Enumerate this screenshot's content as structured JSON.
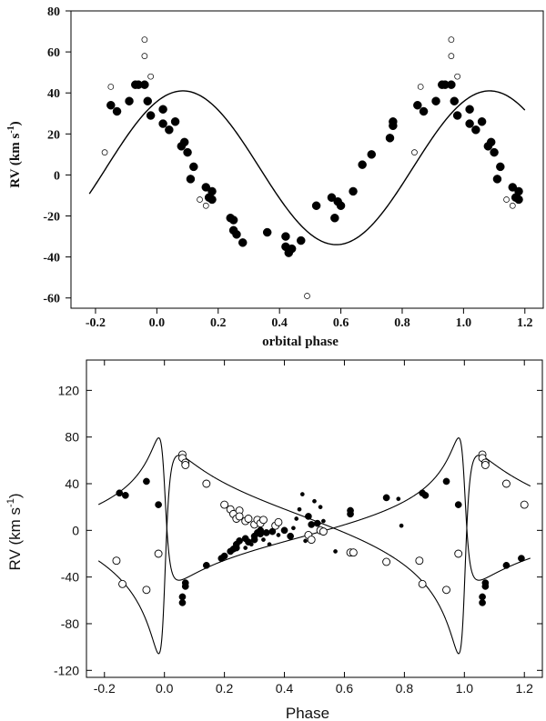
{
  "chart_data": [
    {
      "type": "scatter",
      "title": "",
      "xlabel": "orbital phase",
      "ylabel_main": "RV (km s",
      "ylabel_sup": "-1",
      "ylabel_close": ")",
      "xlim": [
        -0.28,
        1.26
      ],
      "ylim": [
        -65,
        80
      ],
      "xticks": [
        -0.2,
        0.0,
        0.2,
        0.4,
        0.6,
        0.8,
        1.0,
        1.2
      ],
      "xtick_labels": [
        "-0.2",
        "0.0",
        "0.2",
        "0.4",
        "0.6",
        "0.8",
        "1.0",
        "1.2"
      ],
      "yticks": [
        -60,
        -40,
        -20,
        0,
        20,
        40,
        60,
        80
      ],
      "ytick_labels": [
        "-60",
        "-40",
        "-20",
        "0",
        "20",
        "40",
        "60",
        "80"
      ],
      "curve": {
        "name": "fit",
        "gamma": 3.5,
        "K": 37.5,
        "phase0": 0.165
      },
      "series": [
        {
          "name": "filled",
          "marker": "filled-circle",
          "points": [
            [
              -0.15,
              34
            ],
            [
              -0.13,
              31
            ],
            [
              -0.09,
              36
            ],
            [
              -0.07,
              44
            ],
            [
              -0.06,
              44
            ],
            [
              -0.04,
              44
            ],
            [
              -0.03,
              36
            ],
            [
              -0.02,
              29
            ],
            [
              0.02,
              32
            ],
            [
              0.02,
              25
            ],
            [
              0.04,
              22
            ],
            [
              0.06,
              26
            ],
            [
              0.08,
              14
            ],
            [
              0.09,
              16
            ],
            [
              0.1,
              11
            ],
            [
              0.12,
              4
            ],
            [
              0.11,
              -2
            ],
            [
              0.16,
              -6
            ],
            [
              0.17,
              -11
            ],
            [
              0.18,
              -12
            ],
            [
              0.18,
              -8
            ],
            [
              0.24,
              -21
            ],
            [
              0.25,
              -22
            ],
            [
              0.25,
              -27
            ],
            [
              0.26,
              -29
            ],
            [
              0.28,
              -33
            ],
            [
              0.36,
              -28
            ],
            [
              0.42,
              -30
            ],
            [
              0.42,
              -35
            ],
            [
              0.43,
              -38
            ],
            [
              0.44,
              -36
            ],
            [
              0.47,
              -32
            ],
            [
              0.52,
              -15
            ],
            [
              0.57,
              -11
            ],
            [
              0.58,
              -21
            ],
            [
              0.59,
              -13
            ],
            [
              0.6,
              -15
            ],
            [
              0.64,
              -8
            ],
            [
              0.67,
              5
            ],
            [
              0.7,
              10
            ],
            [
              0.76,
              18
            ],
            [
              0.77,
              26
            ],
            [
              0.77,
              24
            ],
            [
              0.85,
              34
            ],
            [
              0.87,
              31
            ],
            [
              0.91,
              36
            ],
            [
              0.93,
              44
            ],
            [
              0.94,
              44
            ],
            [
              0.96,
              44
            ],
            [
              0.97,
              36
            ],
            [
              0.98,
              29
            ],
            [
              1.02,
              32
            ],
            [
              1.02,
              25
            ],
            [
              1.04,
              22
            ],
            [
              1.06,
              26
            ],
            [
              1.08,
              14
            ],
            [
              1.09,
              16
            ],
            [
              1.1,
              11
            ],
            [
              1.12,
              4
            ],
            [
              1.11,
              -2
            ],
            [
              1.16,
              -6
            ],
            [
              1.17,
              -11
            ],
            [
              1.18,
              -12
            ],
            [
              1.18,
              -8
            ]
          ]
        },
        {
          "name": "open",
          "marker": "open-circle",
          "points": [
            [
              -0.17,
              11
            ],
            [
              -0.15,
              43
            ],
            [
              -0.04,
              58
            ],
            [
              -0.04,
              66
            ],
            [
              -0.02,
              48
            ],
            [
              0.14,
              -12
            ],
            [
              0.16,
              -15
            ],
            [
              0.49,
              -59
            ],
            [
              0.84,
              11
            ],
            [
              0.86,
              43
            ],
            [
              0.96,
              58
            ],
            [
              0.96,
              66
            ],
            [
              0.98,
              48
            ],
            [
              1.14,
              -12
            ],
            [
              1.16,
              -15
            ]
          ]
        }
      ]
    },
    {
      "type": "scatter",
      "title": "",
      "xlabel": "Phase",
      "ylabel_main": "RV (km s",
      "ylabel_sup": "-1",
      "ylabel_close": ")",
      "xlim": [
        -0.26,
        1.26
      ],
      "ylim": [
        -126,
        146
      ],
      "xticks": [
        -0.2,
        0.0,
        0.2,
        0.4,
        0.6,
        0.8,
        1.0,
        1.2
      ],
      "xtick_labels": [
        "-0.2",
        "0.0",
        "0.2",
        "0.4",
        "0.6",
        "0.8",
        "1.0",
        "1.2"
      ],
      "yticks": [
        -120,
        -80,
        -40,
        0,
        40,
        80,
        120
      ],
      "ytick_labels": [
        "-120",
        "-80",
        "-40",
        "0",
        "40",
        "80",
        "120"
      ],
      "curves": [
        {
          "name": "component-1",
          "gamma": 2,
          "K": 61,
          "e": 0.78,
          "omega_deg": 70,
          "T0": 0.0
        },
        {
          "name": "component-2",
          "gamma": 2,
          "K": -85,
          "e": 0.78,
          "omega_deg": 70,
          "T0": 0.0
        }
      ],
      "series": [
        {
          "name": "filled-large",
          "marker": "filled-circle",
          "points": [
            [
              -0.15,
              32
            ],
            [
              -0.13,
              30
            ],
            [
              -0.06,
              42
            ],
            [
              -0.02,
              22
            ],
            [
              0.06,
              -57
            ],
            [
              0.06,
              -62
            ],
            [
              0.07,
              -48
            ],
            [
              0.07,
              -45
            ],
            [
              0.14,
              -30
            ],
            [
              0.19,
              -24
            ],
            [
              0.2,
              -22
            ],
            [
              0.22,
              -18
            ],
            [
              0.23,
              -16
            ],
            [
              0.24,
              -12
            ],
            [
              0.24,
              -15
            ],
            [
              0.25,
              -9
            ],
            [
              0.27,
              -7
            ],
            [
              0.28,
              -10
            ],
            [
              0.3,
              -5
            ],
            [
              0.3,
              -8
            ],
            [
              0.31,
              -2
            ],
            [
              0.32,
              0
            ],
            [
              0.32,
              -3
            ],
            [
              0.34,
              -2
            ],
            [
              0.36,
              -1
            ],
            [
              0.4,
              0
            ],
            [
              0.42,
              -5
            ],
            [
              0.48,
              12
            ],
            [
              0.49,
              5
            ],
            [
              0.51,
              6
            ],
            [
              0.62,
              14
            ],
            [
              0.62,
              17
            ],
            [
              0.74,
              28
            ],
            [
              0.86,
              32
            ],
            [
              0.87,
              30
            ],
            [
              0.94,
              42
            ],
            [
              0.98,
              22
            ],
            [
              1.06,
              -57
            ],
            [
              1.06,
              -62
            ],
            [
              1.07,
              -48
            ],
            [
              1.07,
              -45
            ],
            [
              1.14,
              -30
            ],
            [
              1.19,
              -24
            ]
          ]
        },
        {
          "name": "filled-small",
          "marker": "small-filled-circle",
          "points": [
            [
              0.27,
              -15
            ],
            [
              0.29,
              -12
            ],
            [
              0.33,
              -8
            ],
            [
              0.35,
              -12
            ],
            [
              0.38,
              -4
            ],
            [
              0.43,
              2
            ],
            [
              0.44,
              10
            ],
            [
              0.45,
              18
            ],
            [
              0.46,
              31
            ],
            [
              0.47,
              -9
            ],
            [
              0.5,
              25
            ],
            [
              0.52,
              20
            ],
            [
              0.53,
              8
            ],
            [
              0.57,
              -18
            ],
            [
              0.78,
              27
            ],
            [
              0.79,
              4
            ]
          ]
        },
        {
          "name": "open",
          "marker": "open-circle",
          "points": [
            [
              -0.16,
              -26
            ],
            [
              -0.14,
              -46
            ],
            [
              -0.06,
              -51
            ],
            [
              -0.02,
              -20
            ],
            [
              0.06,
              65
            ],
            [
              0.06,
              62
            ],
            [
              0.07,
              58
            ],
            [
              0.07,
              56
            ],
            [
              0.14,
              40
            ],
            [
              0.2,
              22
            ],
            [
              0.22,
              18
            ],
            [
              0.23,
              14
            ],
            [
              0.24,
              10
            ],
            [
              0.25,
              17
            ],
            [
              0.25,
              12
            ],
            [
              0.27,
              8
            ],
            [
              0.28,
              10
            ],
            [
              0.3,
              5
            ],
            [
              0.31,
              9
            ],
            [
              0.32,
              6
            ],
            [
              0.33,
              9
            ],
            [
              0.37,
              4
            ],
            [
              0.38,
              7
            ],
            [
              0.48,
              -4
            ],
            [
              0.49,
              -8
            ],
            [
              0.52,
              0
            ],
            [
              0.53,
              -1
            ],
            [
              0.62,
              -19
            ],
            [
              0.63,
              -19
            ],
            [
              0.74,
              -27
            ],
            [
              0.85,
              -26
            ],
            [
              0.86,
              -46
            ],
            [
              0.94,
              -51
            ],
            [
              0.98,
              -20
            ],
            [
              1.06,
              65
            ],
            [
              1.06,
              62
            ],
            [
              1.07,
              58
            ],
            [
              1.07,
              56
            ],
            [
              1.14,
              40
            ],
            [
              1.2,
              22
            ]
          ]
        }
      ]
    }
  ]
}
